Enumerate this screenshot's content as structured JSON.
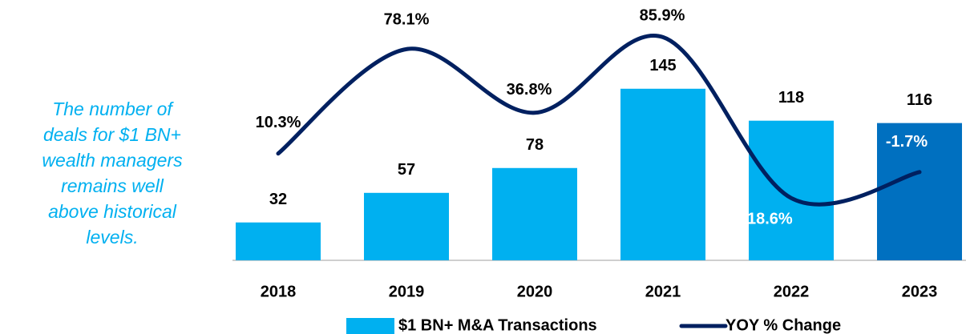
{
  "chart_data": {
    "type": "bar_line",
    "annotation": [
      "The number of",
      "deals for $1 BN+",
      "wealth managers",
      "remains well",
      "above historical",
      "levels."
    ],
    "categories": [
      "2018",
      "2019",
      "2020",
      "2021",
      "2022",
      "2023"
    ],
    "ylim": [
      0,
      220
    ],
    "y2lim": [
      -59,
      110
    ],
    "series": [
      {
        "name": "$1 BN+ M&A Transactions",
        "type": "bar",
        "color": "#00b0f0",
        "point_colors": [
          "#00b0f0",
          "#00b0f0",
          "#00b0f0",
          "#00b0f0",
          "#00b0f0",
          "#0070c0"
        ],
        "values": [
          32,
          57,
          78,
          145,
          118,
          116
        ]
      },
      {
        "name": "YOY % Change",
        "type": "line",
        "axis": "y2",
        "color": "#002060",
        "values": [
          10.3,
          78.1,
          36.8,
          85.9,
          -18.6,
          -1.7
        ],
        "value_labels": [
          "10.3%",
          "78.1%",
          "36.8%",
          "85.9%",
          "-18.6%",
          "-1.7%"
        ]
      }
    ],
    "legend": "bottom"
  }
}
